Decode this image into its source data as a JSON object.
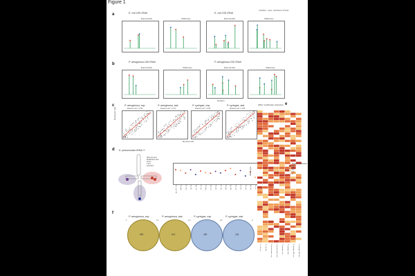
{
  "figure": {
    "title": "Figure 1"
  },
  "colors": {
    "green": "#2e9e5b",
    "red": "#d93a2a",
    "blue": "#2b6cb0",
    "olive": "#c8b45a",
    "venn_blue": "#a9bfe0",
    "heat_low": "#fbe7a3",
    "heat_mid": "#f1a057",
    "heat_high": "#c33b2b"
  },
  "panel_a": {
    "label": "a",
    "groups": [
      {
        "title": "E. coli 16S rRNA",
        "conditions": [
          "Exponential",
          "Stationary"
        ]
      },
      {
        "title": "E. coli 23S rRNA",
        "conditions": [
          "Exponential",
          "Stationary"
        ]
      }
    ],
    "legend": [
      "Condition",
      "Input",
      "Enriched in IP sites"
    ]
  },
  "panel_b": {
    "label": "b",
    "groups": [
      {
        "title": "P. aeruginosa 16S rRNA",
        "conditions": [
          "Exponential",
          "Stationary"
        ]
      },
      {
        "title": "P. aeruginosa 23S rRNA",
        "conditions": [
          "Exponential",
          "Stationary"
        ]
      }
    ],
    "xlabel": "Position"
  },
  "panel_c": {
    "label": "c",
    "plots": [
      {
        "title": "P. aeruginosa_exp",
        "sub": "Pearson corr = 0.39"
      },
      {
        "title": "P. aeruginosa_stat",
        "sub": "Pearson corr = 0.41"
      },
      {
        "title": "P. syringae_exp",
        "sub": "Pearson corr = 0.39"
      },
      {
        "title": "P. syringae_stat",
        "sub": "Pearson corr = 0.49"
      }
    ],
    "ylabel": "Nanopore rate",
    "xlabel": "Illumina rate"
  },
  "panel_d": {
    "label": "d",
    "title": "K. pneumoniae tRNA-Y",
    "legend": [
      "tRNA structure",
      "Modification sites",
      "D-arm",
      "T-arm",
      "Anticodon"
    ],
    "xticks": [
      "Pa_Tyr-GTA",
      "Pa_Asp",
      "Ec_Glu",
      "Ps_Val",
      "Kp_Thr",
      "Ec_Ser",
      "Pa_Arg",
      "Kp_Leu",
      "Ps_Met",
      "Ec_Gly",
      "Pa_Ala",
      "Kp_Phe",
      "Ps_Cys",
      "Ec_Pro",
      "Pa_Lys",
      "Kp_His",
      "Ps_Ile",
      "Ec_Trp",
      "Pa_Gln",
      "Kp_Asn"
    ]
  },
  "panel_e": {
    "label": "e",
    "title": "tRNA modification alteration",
    "ylabel": "tRNA type",
    "legend_title": "Relative modification level",
    "legend_values": [
      "0.5",
      "0.3",
      "0.1",
      "0"
    ],
    "columns": [
      "E. coli exp",
      "E. coli stat",
      "K. pneumoniae exp",
      "K. pneumoniae stat",
      "P. syringae exp",
      "P. syringae stat",
      "P. syringae ΔM exp",
      "P. syringae ΔM stat"
    ]
  },
  "panel_f": {
    "label": "f",
    "venns": [
      {
        "title": "P. aeruginosa_exp",
        "value": "690",
        "left": "1",
        "right": "1"
      },
      {
        "title": "P. aeruginosa_stat",
        "value": "613",
        "left": "1",
        "right": "1"
      },
      {
        "title": "P. syringae_exp",
        "value": "289",
        "left": "2",
        "right": "2"
      },
      {
        "title": "P. syringae_stat",
        "value": "154",
        "left": "2",
        "right": "2"
      }
    ]
  }
}
